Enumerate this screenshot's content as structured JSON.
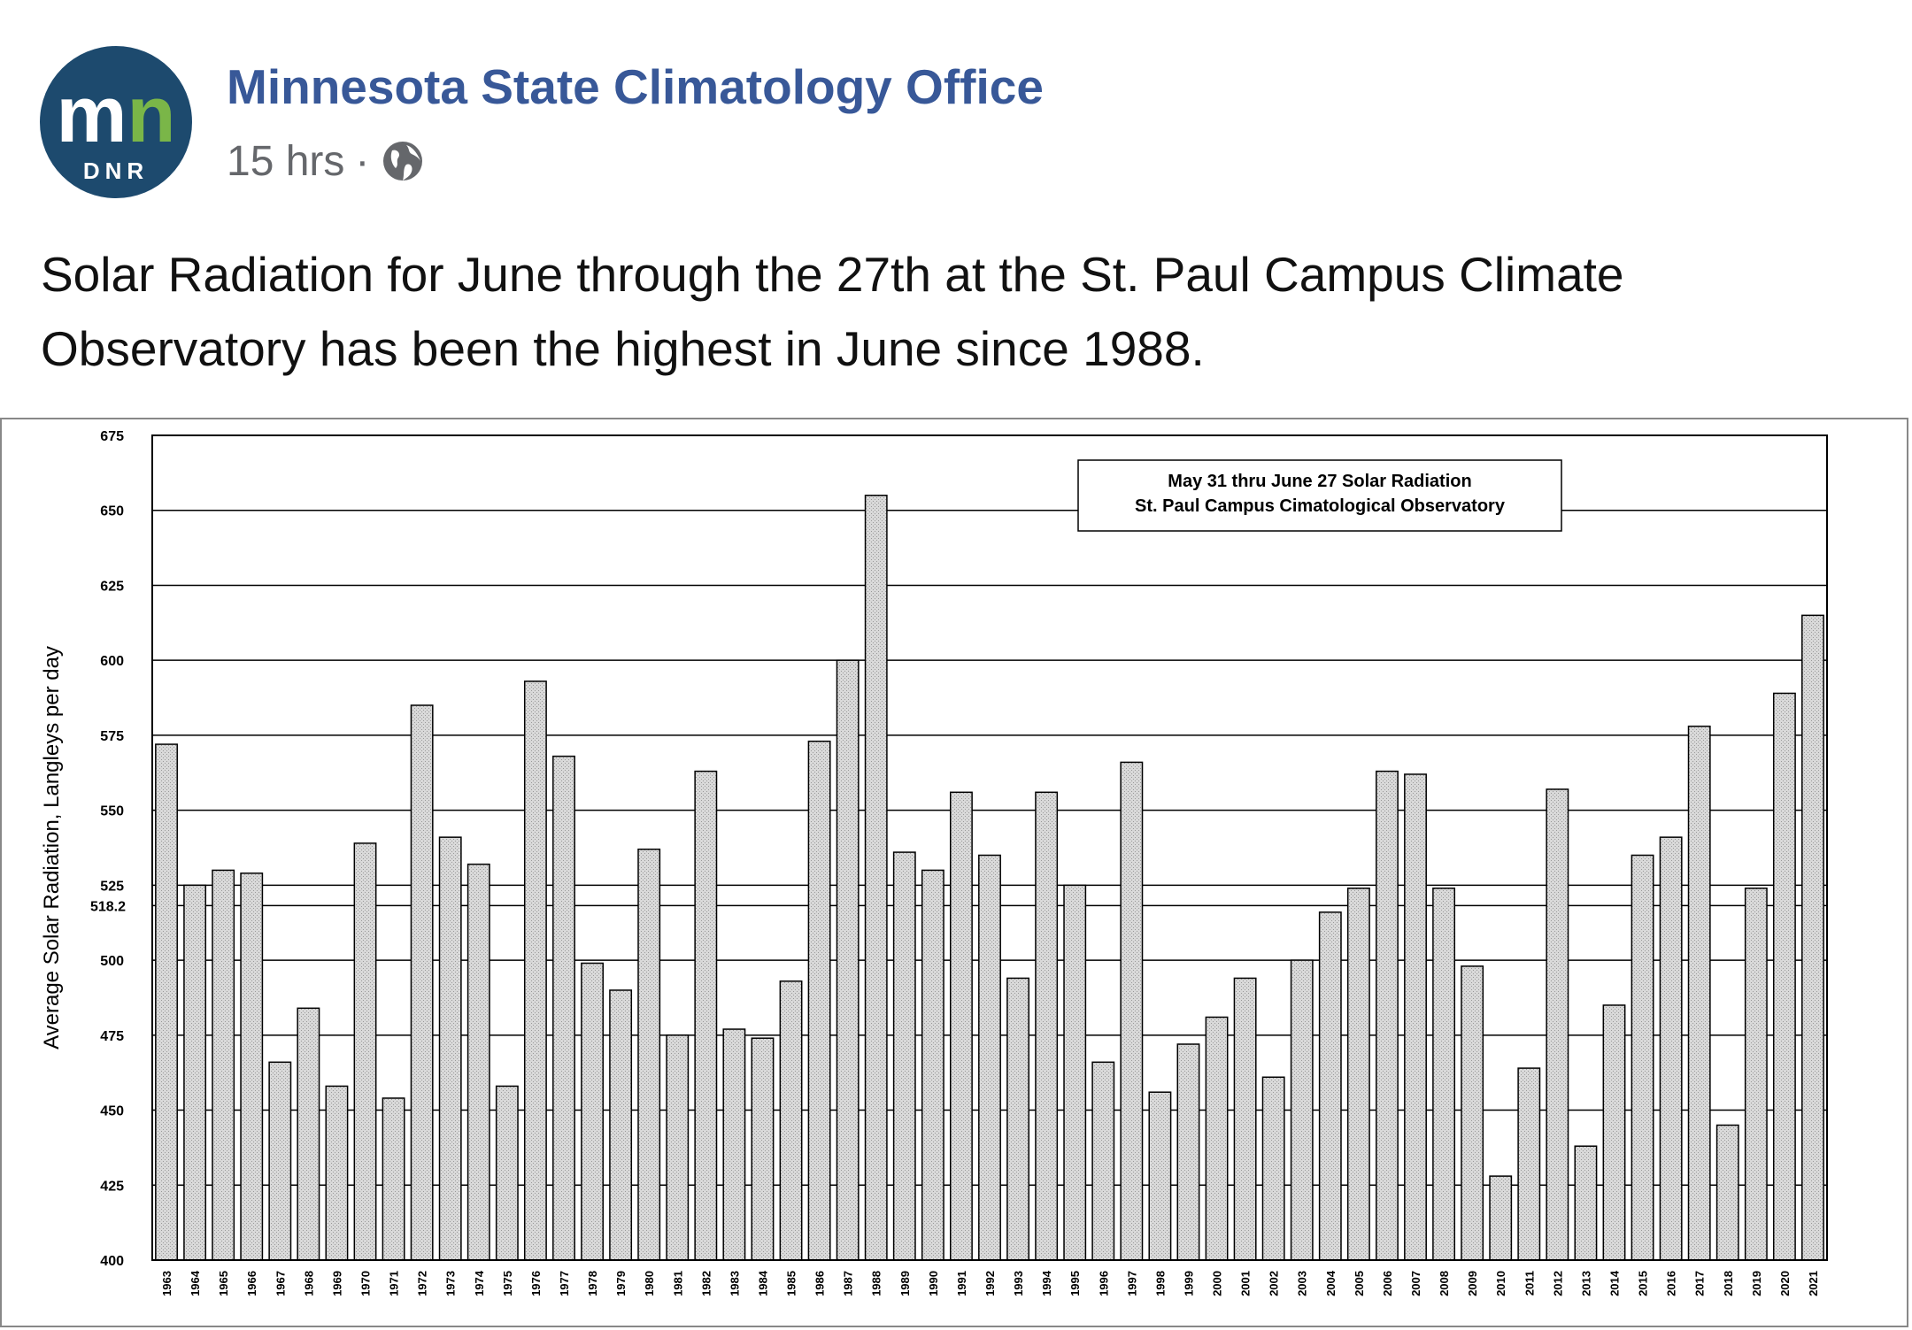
{
  "header": {
    "page_name": "Minnesota State Climatology Office",
    "timestamp": "15 hrs",
    "separator": "·",
    "avatar": {
      "monogram": "mn",
      "label": "DNR",
      "bg_color": "#1d4a6e",
      "accent_color": "#7ab648"
    },
    "privacy_icon": "globe-icon"
  },
  "post": {
    "text": "Solar Radiation for June through the 27th at the St. Paul Campus Climate Observatory has been the highest in June since 1988."
  },
  "chart_data": {
    "type": "bar",
    "title_lines": [
      "May 31 thru June 27 Solar Radiation",
      "St. Paul Campus Cimatological Observatory"
    ],
    "xlabel": "",
    "ylabel": "Average Solar Radiation, Langleys per day",
    "ylim": [
      400,
      675
    ],
    "yticks": [
      400,
      425,
      450,
      475,
      500,
      525,
      550,
      575,
      600,
      625,
      650,
      675
    ],
    "reference_line": {
      "value": 518.2,
      "label": "518.2"
    },
    "grid": true,
    "legend": "none",
    "bar_fill": "#d9d9d9",
    "categories": [
      "1963",
      "1964",
      "1965",
      "1966",
      "1967",
      "1968",
      "1969",
      "1970",
      "1971",
      "1972",
      "1973",
      "1974",
      "1975",
      "1976",
      "1977",
      "1978",
      "1979",
      "1980",
      "1981",
      "1982",
      "1983",
      "1984",
      "1985",
      "1986",
      "1987",
      "1988",
      "1989",
      "1990",
      "1991",
      "1992",
      "1993",
      "1994",
      "1995",
      "1996",
      "1997",
      "1998",
      "1999",
      "2000",
      "2001",
      "2002",
      "2003",
      "2004",
      "2005",
      "2006",
      "2007",
      "2008",
      "2009",
      "2010",
      "2011",
      "2012",
      "2013",
      "2014",
      "2015",
      "2016",
      "2017",
      "2018",
      "2019",
      "2020",
      "2021"
    ],
    "values": [
      572,
      525,
      530,
      529,
      466,
      484,
      458,
      539,
      454,
      585,
      541,
      532,
      458,
      593,
      568,
      499,
      490,
      537,
      475,
      563,
      477,
      474,
      493,
      573,
      600,
      655,
      536,
      530,
      556,
      535,
      494,
      556,
      525,
      466,
      566,
      456,
      472,
      481,
      494,
      461,
      500,
      516,
      524,
      563,
      562,
      524,
      498,
      428,
      464,
      557,
      438,
      485,
      535,
      541,
      578,
      445,
      524,
      589,
      615
    ]
  }
}
